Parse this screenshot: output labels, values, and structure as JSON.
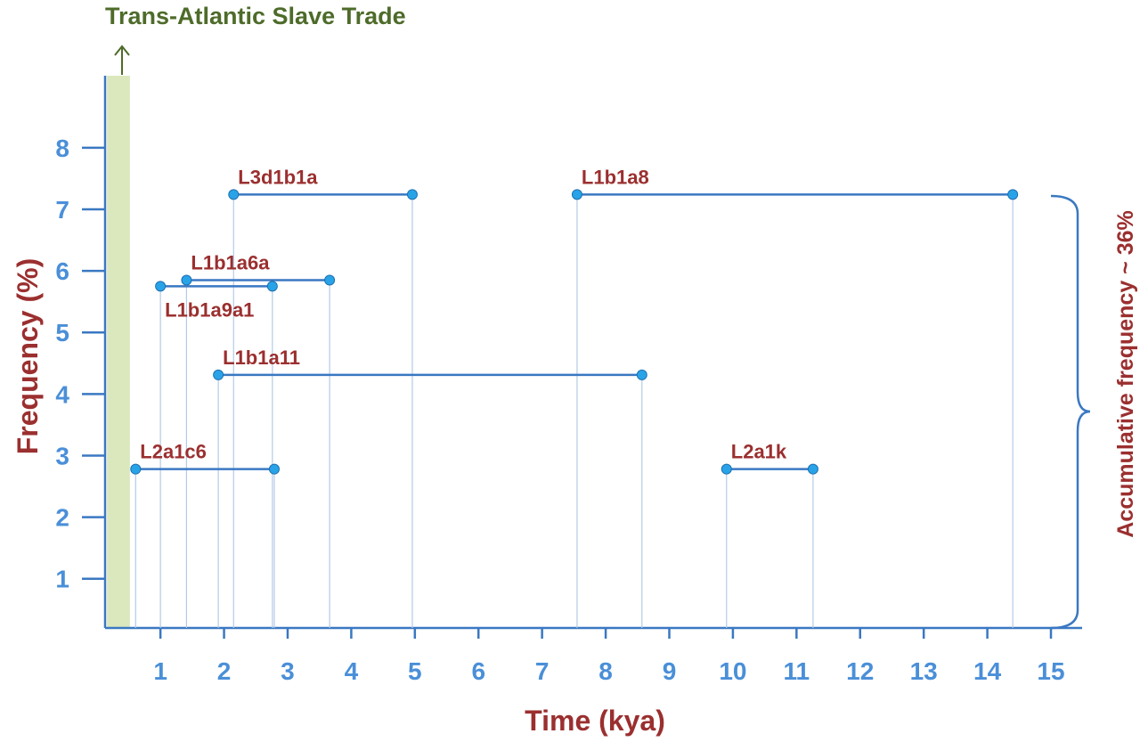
{
  "chart_data": {
    "type": "range",
    "x_label": "Time (kya)",
    "y_label": "Frequency (%)",
    "xlim": [
      0.13,
      15.49
    ],
    "ylim": [
      0.2,
      9.17
    ],
    "xticks": [
      1,
      2,
      3,
      4,
      5,
      6,
      7,
      8,
      9,
      10,
      11,
      12,
      13,
      14,
      15
    ],
    "yticks": [
      1,
      2,
      3,
      4,
      5,
      6,
      7,
      8
    ],
    "color": "#3a78c2",
    "marker_color": "#29a3e8",
    "highlight": {
      "label": "Trans-Atlantic Slave Trade",
      "range": [
        0.16,
        0.52
      ],
      "color": "#dbe8bd"
    },
    "annotation": "Accumulative frequency ~ 36%",
    "series": [
      {
        "name": "L3d1b1a",
        "x": [
          2.15,
          4.96
        ],
        "values": [
          7.24,
          7.24
        ]
      },
      {
        "name": "L1b1a8",
        "x": [
          7.55,
          14.4
        ],
        "values": [
          7.24,
          7.24
        ]
      },
      {
        "name": "L1b1a6a",
        "x": [
          1.41,
          3.66
        ],
        "values": [
          5.85,
          5.85
        ]
      },
      {
        "name": "L1b1a9a1",
        "x": [
          1.0,
          2.76
        ],
        "values": [
          5.75,
          5.75
        ]
      },
      {
        "name": "L1b1a11",
        "x": [
          1.91,
          8.57
        ],
        "values": [
          4.31,
          4.31
        ]
      },
      {
        "name": "L2a1c6",
        "x": [
          0.61,
          2.79
        ],
        "values": [
          2.78,
          2.78
        ]
      },
      {
        "name": "L2a1k",
        "x": [
          9.9,
          11.26
        ],
        "values": [
          2.78,
          2.78
        ]
      }
    ]
  }
}
